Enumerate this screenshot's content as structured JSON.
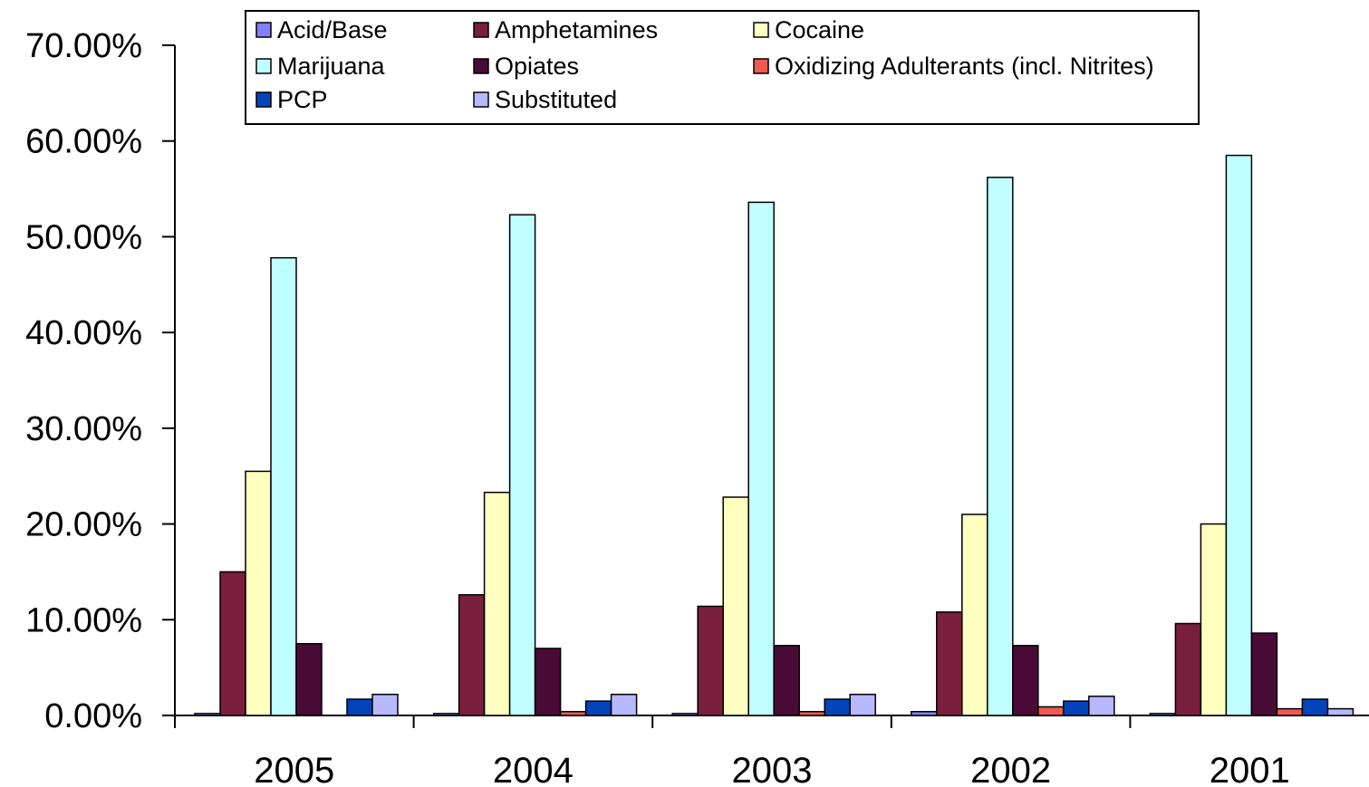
{
  "chart_data": {
    "type": "bar",
    "title": "",
    "xlabel": "",
    "ylabel": "",
    "ylim": [
      0,
      70
    ],
    "y_tick_values": [
      0,
      10,
      20,
      30,
      40,
      50,
      60,
      70
    ],
    "y_tick_labels": [
      "0.00%",
      "10.00%",
      "20.00%",
      "30.00%",
      "40.00%",
      "50.00%",
      "60.00%",
      "70.00%"
    ],
    "grid": false,
    "legend_position": "top",
    "categories": [
      "2005",
      "2004",
      "2003",
      "2002",
      "2001"
    ],
    "series": [
      {
        "name": "Acid/Base",
        "color": "#8080FF",
        "values": [
          0.2,
          0.2,
          0.2,
          0.4,
          0.2
        ]
      },
      {
        "name": "Amphetamines",
        "color": "#7A1F3D",
        "values": [
          15.0,
          12.6,
          11.4,
          10.8,
          9.6
        ]
      },
      {
        "name": "Cocaine",
        "color": "#FFFFC0",
        "values": [
          25.5,
          23.3,
          22.8,
          21.0,
          20.0
        ]
      },
      {
        "name": "Marijuana",
        "color": "#C0FFFF",
        "values": [
          47.8,
          52.3,
          53.6,
          56.2,
          58.5
        ]
      },
      {
        "name": "Opiates",
        "color": "#4A0A36",
        "values": [
          7.5,
          7.0,
          7.3,
          7.3,
          8.6
        ]
      },
      {
        "name": "Oxidizing Adulterants (incl. Nitrites)",
        "color": "#F05A50",
        "values": [
          0.0,
          0.4,
          0.4,
          0.9,
          0.7
        ]
      },
      {
        "name": "PCP",
        "color": "#0044BB",
        "values": [
          1.7,
          1.5,
          1.7,
          1.5,
          1.7
        ]
      },
      {
        "name": "Substituted",
        "color": "#B8B8FF",
        "values": [
          2.2,
          2.2,
          2.2,
          2.0,
          0.7
        ]
      }
    ]
  }
}
